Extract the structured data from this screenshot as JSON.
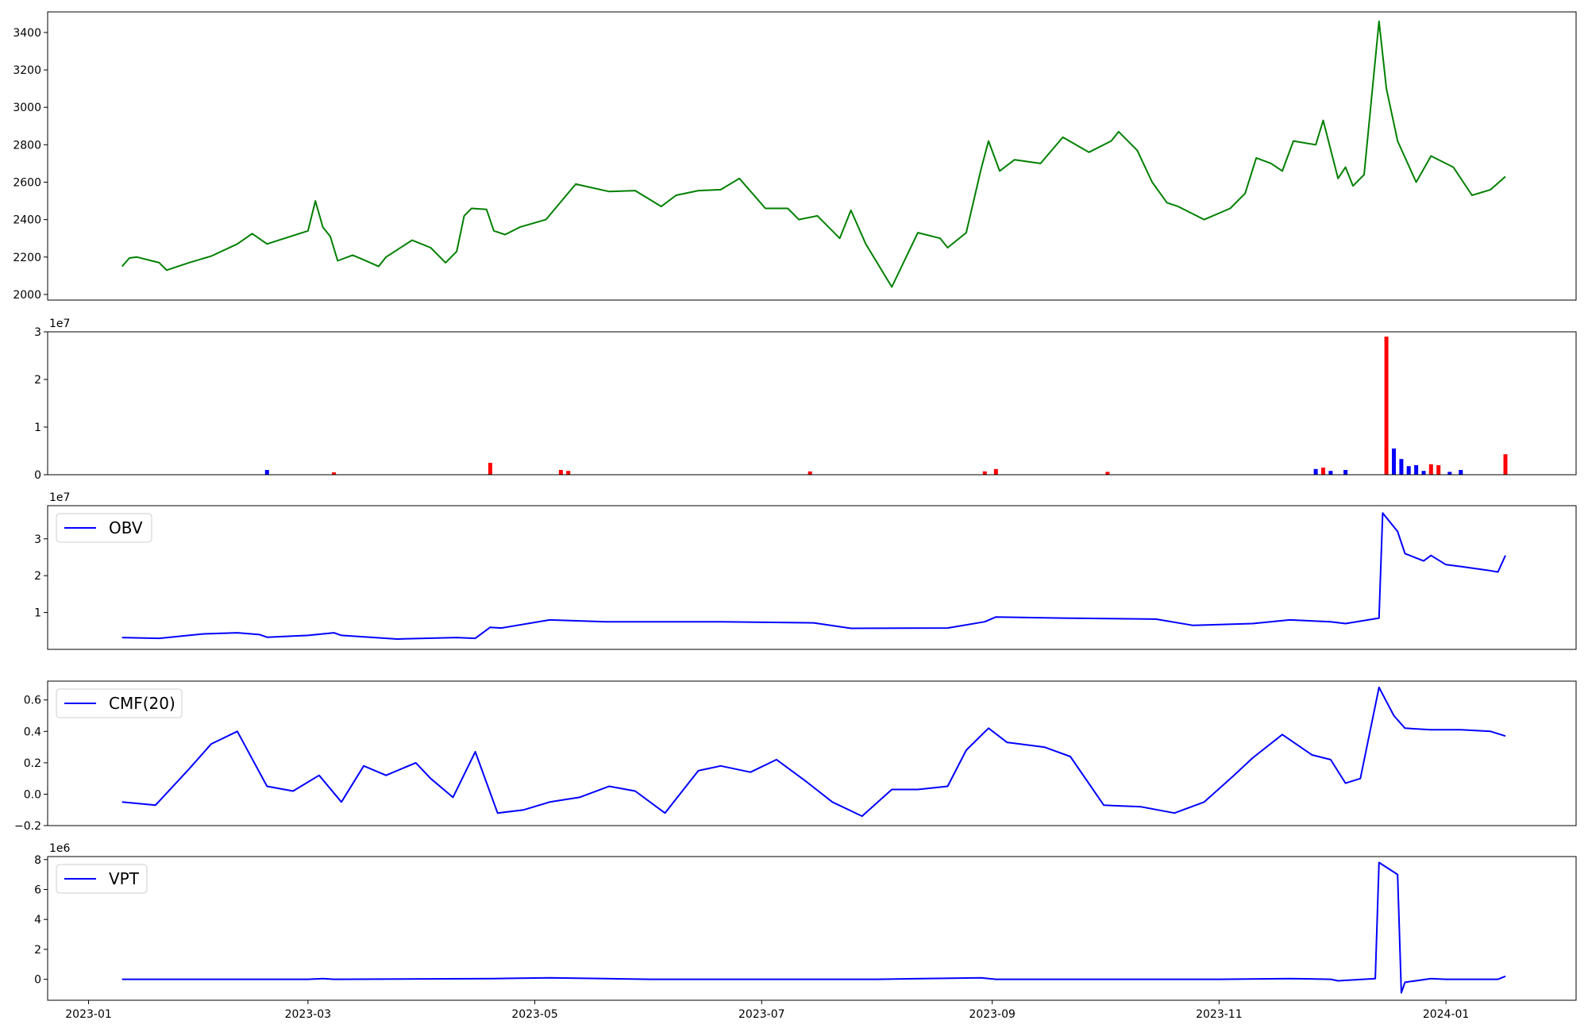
{
  "x_axis": {
    "tick_labels": [
      "2023-01",
      "2023-03",
      "2023-05",
      "2023-07",
      "2023-09",
      "2023-11",
      "2024-01"
    ],
    "tick_dates": [
      "2023-01-01",
      "2023-03-01",
      "2023-05-01",
      "2023-07-01",
      "2023-09-01",
      "2023-11-01",
      "2024-01-01"
    ],
    "range": [
      "2022-12-21",
      "2024-02-05"
    ]
  },
  "chart_data": [
    {
      "type": "line",
      "name": "price",
      "color": "#008000",
      "legend": "",
      "offset_label": "",
      "ylim": [
        1970,
        3510
      ],
      "yticks": [
        2000,
        2200,
        2400,
        2600,
        2800,
        3000,
        3200,
        3400
      ],
      "ytick_labels": [
        "2000",
        "2200",
        "2400",
        "2600",
        "2800",
        "3000",
        "3200",
        "3400"
      ],
      "x": [
        "2023-01-10",
        "2023-01-12",
        "2023-01-14",
        "2023-01-20",
        "2023-01-22",
        "2023-01-28",
        "2023-02-03",
        "2023-02-10",
        "2023-02-14",
        "2023-02-18",
        "2023-03-01",
        "2023-03-03",
        "2023-03-05",
        "2023-03-07",
        "2023-03-09",
        "2023-03-13",
        "2023-03-16",
        "2023-03-20",
        "2023-03-22",
        "2023-03-29",
        "2023-04-03",
        "2023-04-07",
        "2023-04-10",
        "2023-04-12",
        "2023-04-14",
        "2023-04-18",
        "2023-04-20",
        "2023-04-23",
        "2023-04-27",
        "2023-05-04",
        "2023-05-12",
        "2023-05-21",
        "2023-05-28",
        "2023-06-04",
        "2023-06-08",
        "2023-06-14",
        "2023-06-20",
        "2023-06-25",
        "2023-07-02",
        "2023-07-08",
        "2023-07-11",
        "2023-07-16",
        "2023-07-22",
        "2023-07-25",
        "2023-07-29",
        "2023-08-05",
        "2023-08-12",
        "2023-08-18",
        "2023-08-20",
        "2023-08-25",
        "2023-08-29",
        "2023-08-31",
        "2023-09-03",
        "2023-09-07",
        "2023-09-14",
        "2023-09-20",
        "2023-09-27",
        "2023-10-03",
        "2023-10-05",
        "2023-10-10",
        "2023-10-14",
        "2023-10-18",
        "2023-10-21",
        "2023-10-28",
        "2023-11-04",
        "2023-11-08",
        "2023-11-11",
        "2023-11-15",
        "2023-11-18",
        "2023-11-21",
        "2023-11-27",
        "2023-11-29",
        "2023-12-03",
        "2023-12-05",
        "2023-12-07",
        "2023-12-10",
        "2023-12-14",
        "2023-12-16",
        "2023-12-19",
        "2023-12-24",
        "2023-12-28",
        "2024-01-03",
        "2024-01-08",
        "2024-01-13",
        "2024-01-17"
      ],
      "y": [
        2150,
        2195,
        2200,
        2170,
        2130,
        2170,
        2205,
        2270,
        2325,
        2270,
        2340,
        2500,
        2360,
        2310,
        2180,
        2210,
        2185,
        2150,
        2200,
        2290,
        2250,
        2170,
        2230,
        2420,
        2460,
        2455,
        2340,
        2320,
        2360,
        2400,
        2590,
        2550,
        2555,
        2470,
        2530,
        2555,
        2560,
        2620,
        2460,
        2460,
        2400,
        2420,
        2300,
        2450,
        2270,
        2040,
        2330,
        2300,
        2250,
        2330,
        2670,
        2820,
        2660,
        2720,
        2700,
        2840,
        2760,
        2820,
        2870,
        2770,
        2600,
        2490,
        2470,
        2400,
        2460,
        2540,
        2730,
        2700,
        2660,
        2820,
        2800,
        2930,
        2620,
        2680,
        2580,
        2640,
        3460,
        3100,
        2820,
        2600,
        2740,
        2680,
        2530,
        2560,
        2630
      ]
    },
    {
      "type": "bar",
      "name": "volume",
      "legend": "",
      "offset_label": "1e7",
      "ylim": [
        0,
        3.0
      ],
      "yticks": [
        0,
        1,
        2,
        3
      ],
      "ytick_labels": [
        "0",
        "1",
        "2",
        "3"
      ],
      "colors": {
        "up": "#ff0000",
        "down": "#0000ff"
      },
      "x": [
        "2023-02-18",
        "2023-03-08",
        "2023-04-19",
        "2023-05-08",
        "2023-05-10",
        "2023-07-14",
        "2023-08-30",
        "2023-09-02",
        "2023-10-02",
        "2023-11-27",
        "2023-11-29",
        "2023-12-01",
        "2023-12-05",
        "2023-12-16",
        "2023-12-18",
        "2023-12-20",
        "2023-12-22",
        "2023-12-24",
        "2023-12-26",
        "2023-12-28",
        "2023-12-30",
        "2024-01-02",
        "2024-01-05",
        "2024-01-17"
      ],
      "values": [
        0.1,
        0.05,
        0.25,
        0.1,
        0.08,
        0.07,
        0.07,
        0.12,
        0.06,
        0.12,
        0.15,
        0.08,
        0.1,
        2.9,
        0.55,
        0.33,
        0.18,
        0.2,
        0.08,
        0.22,
        0.2,
        0.06,
        0.1,
        0.43
      ],
      "directions": [
        "down",
        "up",
        "up",
        "up",
        "up",
        "up",
        "up",
        "up",
        "up",
        "down",
        "up",
        "down",
        "down",
        "up",
        "down",
        "down",
        "down",
        "down",
        "down",
        "up",
        "up",
        "down",
        "down",
        "up"
      ]
    },
    {
      "type": "line",
      "name": "OBV",
      "color": "#0000ff",
      "legend": "OBV",
      "offset_label": "1e7",
      "ylim": [
        0,
        3.9
      ],
      "yticks": [
        1,
        2,
        3
      ],
      "ytick_labels": [
        "1",
        "2",
        "3"
      ],
      "x": [
        "2023-01-10",
        "2023-01-20",
        "2023-02-01",
        "2023-02-10",
        "2023-02-16",
        "2023-02-18",
        "2023-03-01",
        "2023-03-08",
        "2023-03-10",
        "2023-03-25",
        "2023-04-10",
        "2023-04-15",
        "2023-04-19",
        "2023-04-22",
        "2023-05-05",
        "2023-05-20",
        "2023-06-20",
        "2023-07-15",
        "2023-07-25",
        "2023-08-20",
        "2023-08-30",
        "2023-09-02",
        "2023-09-20",
        "2023-10-15",
        "2023-10-25",
        "2023-11-10",
        "2023-11-20",
        "2023-12-01",
        "2023-12-05",
        "2023-12-14",
        "2023-12-15",
        "2023-12-19",
        "2023-12-21",
        "2023-12-26",
        "2023-12-28",
        "2024-01-01",
        "2024-01-05",
        "2024-01-12",
        "2024-01-15",
        "2024-01-17"
      ],
      "y": [
        0.32,
        0.3,
        0.42,
        0.45,
        0.4,
        0.33,
        0.38,
        0.45,
        0.38,
        0.28,
        0.32,
        0.3,
        0.6,
        0.58,
        0.8,
        0.75,
        0.75,
        0.72,
        0.57,
        0.58,
        0.75,
        0.88,
        0.85,
        0.82,
        0.65,
        0.7,
        0.8,
        0.75,
        0.7,
        0.85,
        3.7,
        3.2,
        2.6,
        2.4,
        2.55,
        2.3,
        2.25,
        2.15,
        2.1,
        2.55
      ]
    },
    {
      "type": "line",
      "name": "CMF(20)",
      "color": "#0000ff",
      "legend": "CMF(20)",
      "offset_label": "",
      "ylim": [
        -0.2,
        0.72
      ],
      "yticks": [
        -0.2,
        0.0,
        0.2,
        0.4,
        0.6
      ],
      "ytick_labels": [
        "−0.2",
        "0.0",
        "0.2",
        "0.4",
        "0.6"
      ],
      "x": [
        "2023-01-10",
        "2023-01-19",
        "2023-01-28",
        "2023-02-03",
        "2023-02-10",
        "2023-02-18",
        "2023-02-25",
        "2023-03-04",
        "2023-03-10",
        "2023-03-16",
        "2023-03-22",
        "2023-03-30",
        "2023-04-03",
        "2023-04-09",
        "2023-04-15",
        "2023-04-21",
        "2023-04-28",
        "2023-05-05",
        "2023-05-13",
        "2023-05-21",
        "2023-05-28",
        "2023-06-05",
        "2023-06-14",
        "2023-06-20",
        "2023-06-28",
        "2023-07-05",
        "2023-07-13",
        "2023-07-20",
        "2023-07-28",
        "2023-08-05",
        "2023-08-12",
        "2023-08-20",
        "2023-08-25",
        "2023-08-31",
        "2023-09-05",
        "2023-09-15",
        "2023-09-22",
        "2023-10-01",
        "2023-10-11",
        "2023-10-20",
        "2023-10-28",
        "2023-11-05",
        "2023-11-10",
        "2023-11-18",
        "2023-11-26",
        "2023-12-01",
        "2023-12-05",
        "2023-12-09",
        "2023-12-14",
        "2023-12-18",
        "2023-12-21",
        "2023-12-28",
        "2024-01-05",
        "2024-01-13",
        "2024-01-17"
      ],
      "y": [
        -0.05,
        -0.07,
        0.16,
        0.32,
        0.4,
        0.05,
        0.02,
        0.12,
        -0.05,
        0.18,
        0.12,
        0.2,
        0.1,
        -0.02,
        0.27,
        -0.12,
        -0.1,
        -0.05,
        -0.02,
        0.05,
        0.02,
        -0.12,
        0.15,
        0.18,
        0.14,
        0.22,
        0.08,
        -0.05,
        -0.14,
        0.03,
        0.03,
        0.05,
        0.28,
        0.42,
        0.33,
        0.3,
        0.24,
        -0.07,
        -0.08,
        -0.12,
        -0.05,
        0.12,
        0.23,
        0.38,
        0.25,
        0.22,
        0.07,
        0.1,
        0.68,
        0.5,
        0.42,
        0.41,
        0.41,
        0.4,
        0.37
      ]
    },
    {
      "type": "line",
      "name": "VPT",
      "color": "#0000ff",
      "legend": "VPT",
      "offset_label": "1e6",
      "ylim": [
        -1.4,
        8.2
      ],
      "yticks": [
        0,
        2,
        4,
        6,
        8
      ],
      "ytick_labels": [
        "0",
        "2",
        "4",
        "6",
        "8"
      ],
      "x": [
        "2023-01-10",
        "2023-03-01",
        "2023-03-05",
        "2023-03-08",
        "2023-04-20",
        "2023-05-05",
        "2023-06-01",
        "2023-07-01",
        "2023-08-01",
        "2023-08-29",
        "2023-09-02",
        "2023-10-01",
        "2023-11-01",
        "2023-11-20",
        "2023-12-01",
        "2023-12-03",
        "2023-12-13",
        "2023-12-14",
        "2023-12-19",
        "2023-12-20",
        "2023-12-21",
        "2023-12-28",
        "2024-01-01",
        "2024-01-15",
        "2024-01-17"
      ],
      "y": [
        0,
        0,
        0.05,
        0,
        0.05,
        0.1,
        0,
        0,
        0,
        0.1,
        0,
        0,
        0,
        0.05,
        0,
        -0.1,
        0.05,
        7.8,
        7.0,
        -0.9,
        -0.2,
        0.05,
        0,
        0,
        0.2
      ]
    }
  ]
}
